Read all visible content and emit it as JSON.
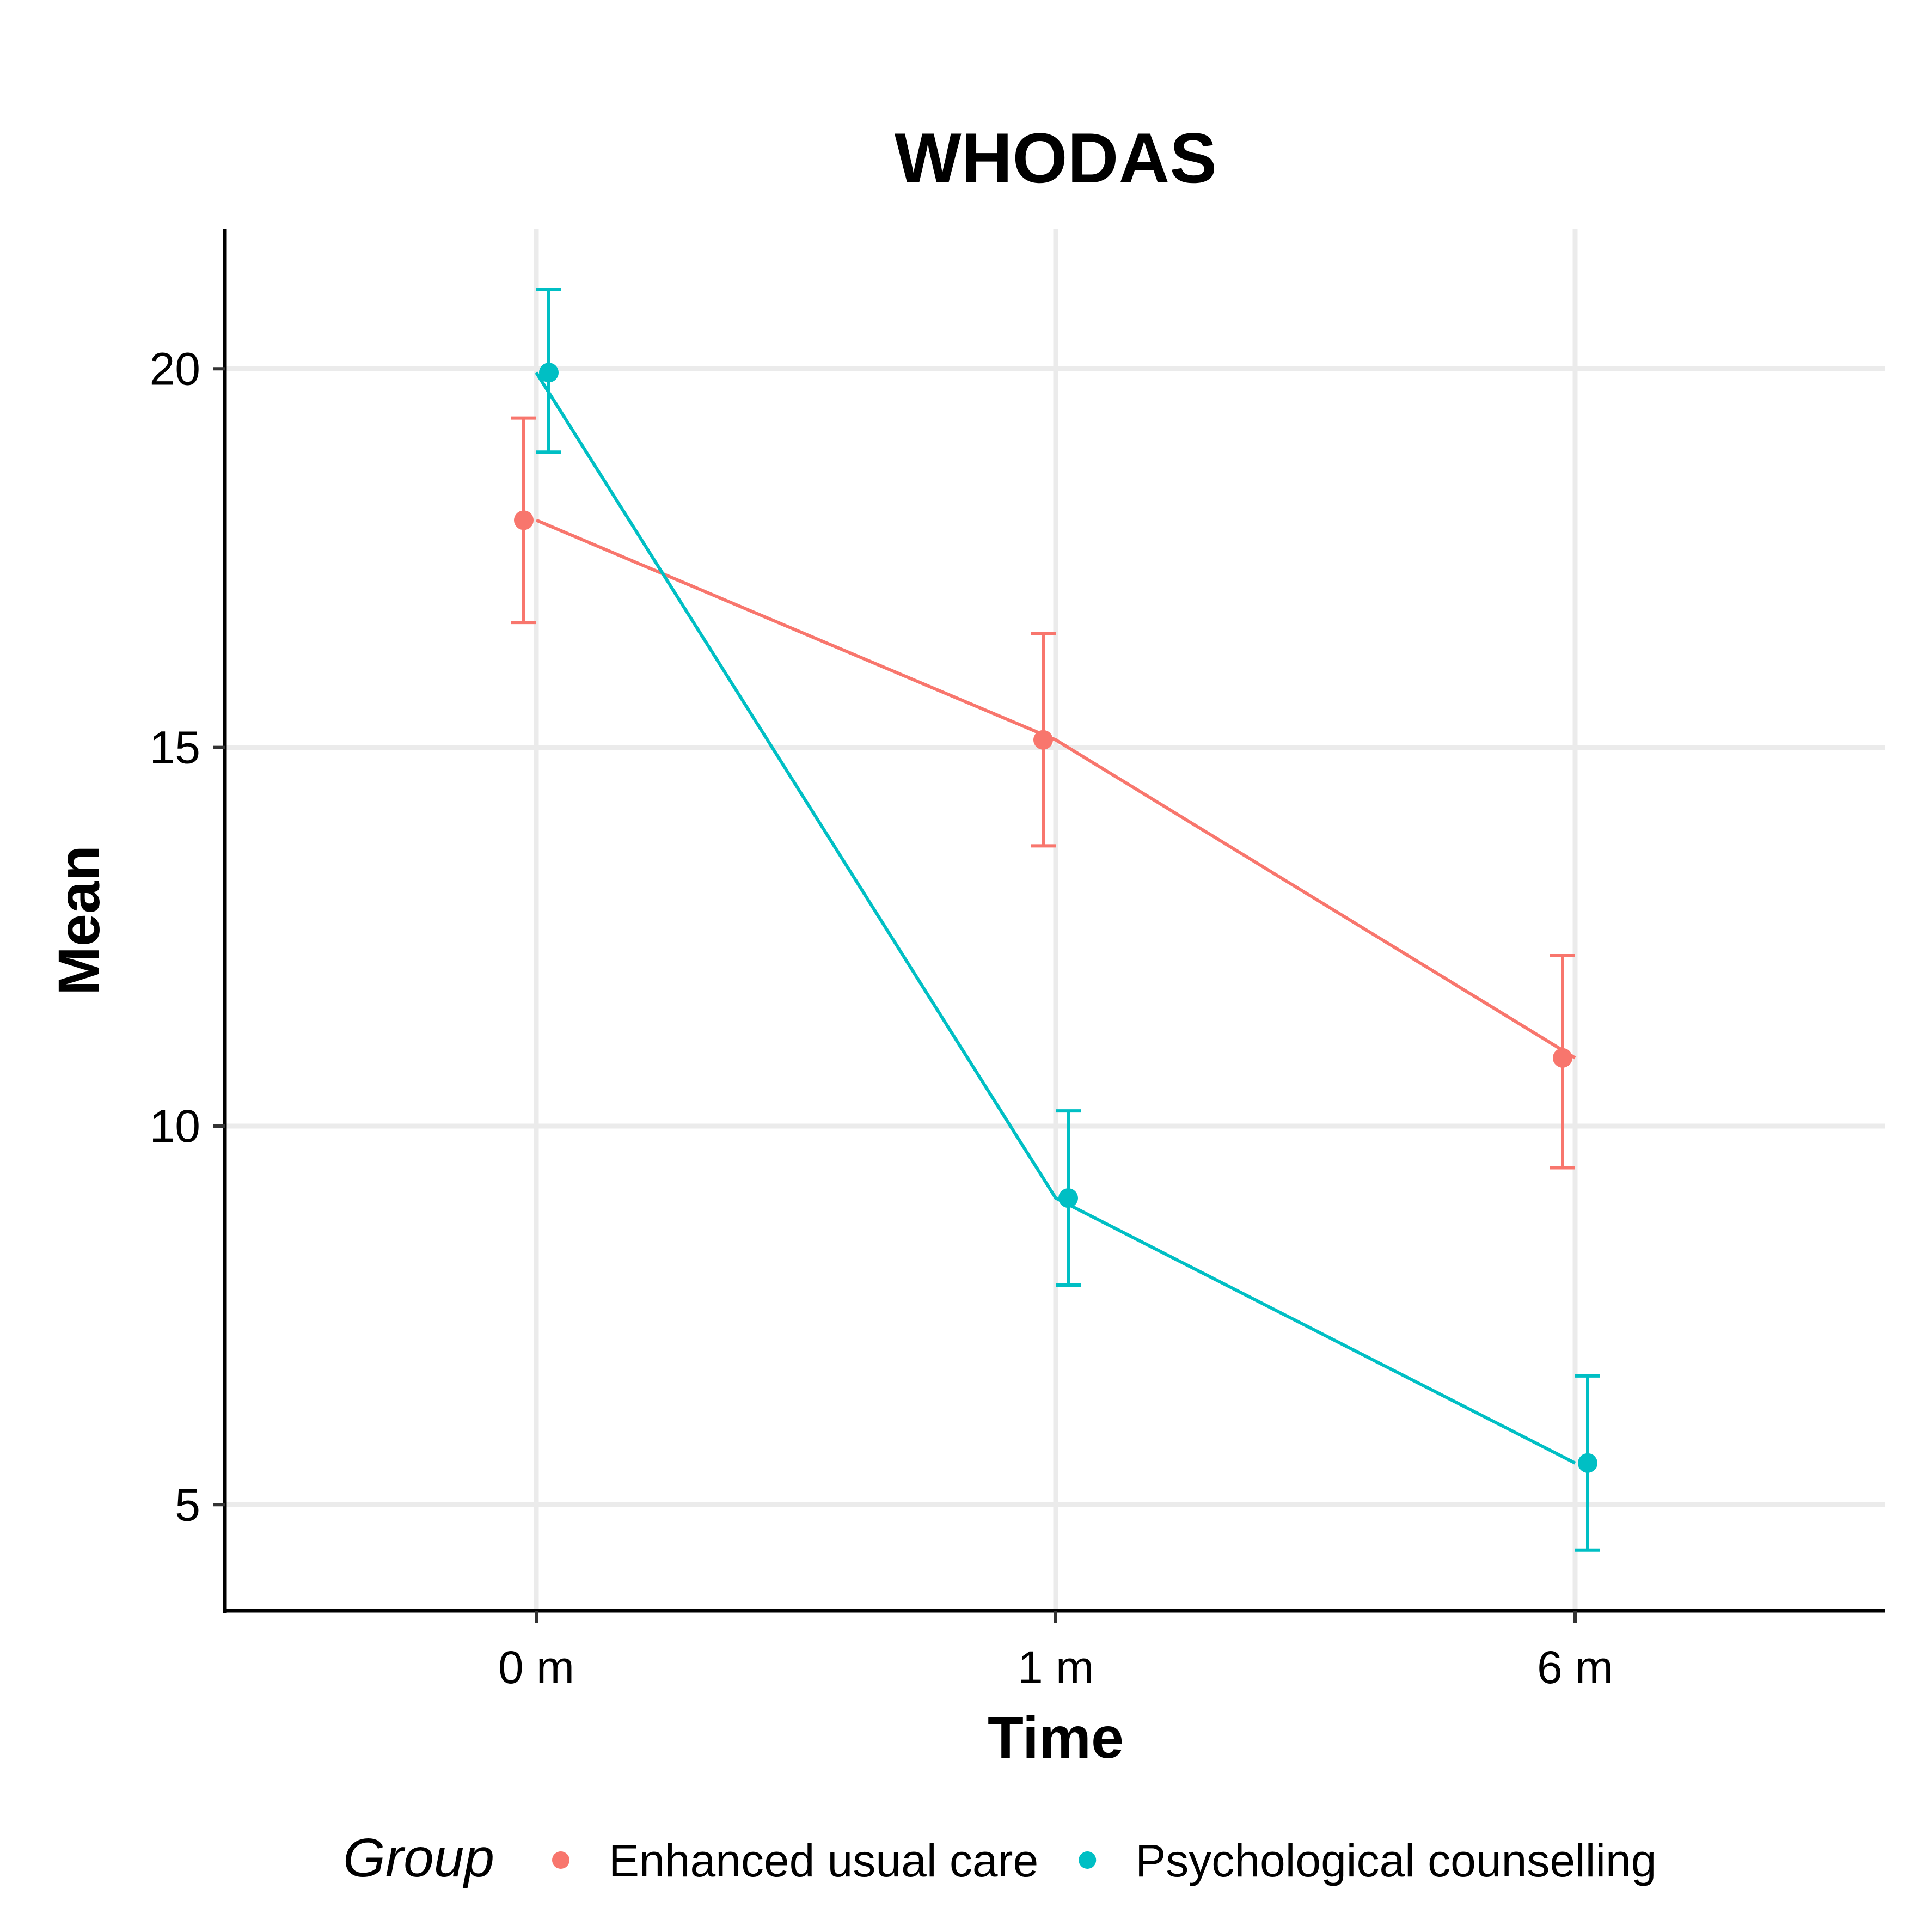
{
  "chart_data": {
    "type": "line",
    "title": "WHODAS",
    "xlabel": "Time",
    "ylabel": "Mean",
    "categories": [
      "0 m",
      "1 m",
      "6 m"
    ],
    "y_ticks": [
      5,
      10,
      15,
      20
    ],
    "ylim": [
      3.6,
      21.85
    ],
    "grid": true,
    "legend": {
      "title": "Group",
      "position": "bottom"
    },
    "error_bars": true,
    "series": [
      {
        "name": "Enhanced usual care",
        "color": "#F8766D",
        "values": [
          18.0,
          15.1,
          10.9
        ],
        "lower": [
          16.65,
          13.7,
          9.45
        ],
        "upper": [
          19.35,
          16.5,
          12.25
        ]
      },
      {
        "name": "Psychological counselling",
        "color": "#00BFC4",
        "values": [
          19.95,
          9.05,
          5.55
        ],
        "lower": [
          18.9,
          7.9,
          4.4
        ],
        "upper": [
          21.05,
          10.2,
          6.7
        ]
      }
    ]
  }
}
